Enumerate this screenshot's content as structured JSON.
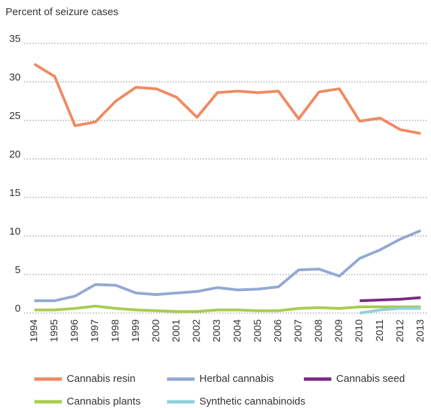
{
  "chart_data": {
    "type": "line",
    "y_label": "Percent of seizure cases",
    "categories": [
      "1994",
      "1995",
      "1996",
      "1997",
      "1998",
      "1999",
      "2000",
      "2001",
      "2002",
      "2003",
      "2004",
      "2005",
      "2006",
      "2007",
      "2008",
      "2009",
      "2010",
      "2011",
      "2012",
      "2013"
    ],
    "series": [
      {
        "name": "Cannabis resin",
        "color": "#f08a62",
        "values": [
          32.3,
          30.7,
          24.3,
          24.8,
          27.5,
          29.3,
          29.1,
          28.0,
          25.4,
          28.6,
          28.8,
          28.6,
          28.8,
          25.2,
          28.7,
          29.1,
          24.9,
          25.3,
          23.8,
          23.3
        ]
      },
      {
        "name": "Herbal cannabis",
        "color": "#93a9d2",
        "values": [
          1.6,
          1.6,
          2.2,
          3.7,
          3.6,
          2.6,
          2.4,
          2.6,
          2.8,
          3.3,
          3.0,
          3.1,
          3.4,
          5.6,
          5.7,
          4.8,
          7.1,
          8.2,
          9.6,
          10.7
        ]
      },
      {
        "name": "Cannabis seed",
        "color": "#7b2a85",
        "values": [
          null,
          null,
          null,
          null,
          null,
          null,
          null,
          null,
          null,
          null,
          null,
          null,
          null,
          null,
          null,
          null,
          1.6,
          1.7,
          1.8,
          2.0
        ]
      },
      {
        "name": "Cannabis plants",
        "color": "#a9cc4f",
        "values": [
          0.4,
          0.4,
          0.6,
          0.9,
          0.6,
          0.4,
          0.3,
          0.2,
          0.2,
          0.4,
          0.4,
          0.3,
          0.3,
          0.6,
          0.7,
          0.6,
          0.8,
          0.8,
          0.8,
          0.8
        ]
      },
      {
        "name": "Synthetic cannabinoids",
        "color": "#8fd0de",
        "values": [
          null,
          null,
          null,
          null,
          null,
          null,
          null,
          null,
          null,
          null,
          null,
          null,
          null,
          null,
          null,
          null,
          0.0,
          0.4,
          0.6,
          0.6
        ]
      }
    ],
    "ylim": [
      0,
      35
    ],
    "yticks": [
      0,
      5,
      10,
      15,
      20,
      25,
      30,
      35
    ],
    "grid": true,
    "legend": "bottom"
  }
}
